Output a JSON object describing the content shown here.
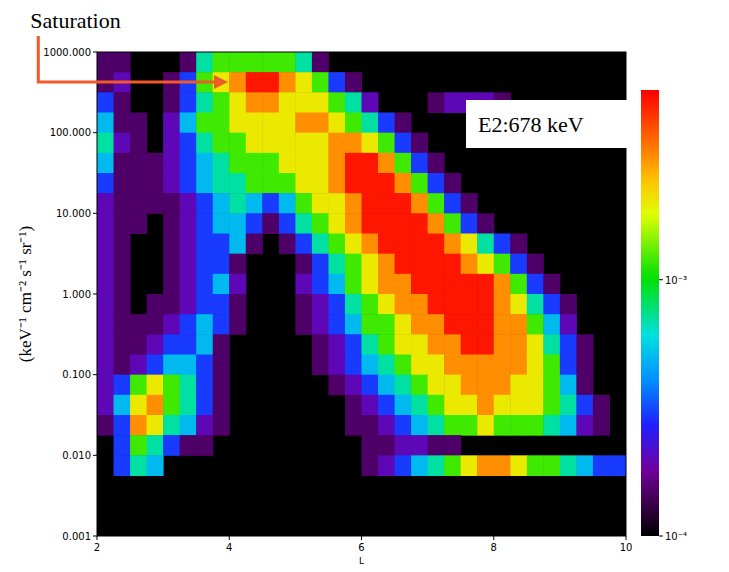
{
  "chart_data": {
    "type": "heatmap",
    "annotations": [
      "Saturation",
      "E2:678 keV"
    ],
    "xlabel": "L",
    "ylabel": "(keV⁻¹ cm⁻² s⁻¹ sr⁻¹)",
    "log": "y",
    "xlim": [
      2,
      10
    ],
    "xticks": [
      2,
      4,
      6,
      8,
      10
    ],
    "ylim": [
      0.001,
      1000
    ],
    "yticks": [
      {
        "value": 0.001,
        "label": "0.001"
      },
      {
        "value": 0.01,
        "label": "0.010"
      },
      {
        "value": 0.1,
        "label": "0.100"
      },
      {
        "value": 1,
        "label": "1.000"
      },
      {
        "value": 10,
        "label": "10.000"
      },
      {
        "value": 100,
        "label": "100.000"
      },
      {
        "value": 1000,
        "label": "1000.000"
      }
    ],
    "x_bins": [
      2,
      2.25,
      2.5,
      2.75,
      3,
      3.25,
      3.5,
      3.75,
      4,
      4.25,
      4.5,
      4.75,
      5,
      5.25,
      5.5,
      5.75,
      6,
      6.25,
      6.5,
      6.75,
      7,
      7.25,
      7.5,
      7.75,
      8,
      8.25,
      8.5,
      8.75,
      9,
      9.25,
      9.5,
      9.75,
      10
    ],
    "y_bins": [
      1000,
      562.3,
      316.2,
      177.8,
      100,
      56.23,
      31.62,
      17.78,
      10,
      5.623,
      3.162,
      1.778,
      1,
      0.5623,
      0.3162,
      0.1778,
      0.1,
      0.05623,
      0.03162,
      0.01778,
      0.01,
      0.005623,
      0.003162,
      0.001778,
      0.001
    ],
    "cells": [
      [
        0.00015,
        0.00015,
        null,
        null,
        null,
        0.00015,
        0.0007,
        0.0012,
        0.0012,
        0.0012,
        0.0012,
        0.0012,
        0.0007,
        0.00015,
        null,
        null,
        null,
        null,
        null,
        null,
        null,
        null,
        null,
        null,
        null,
        null,
        null,
        null,
        null,
        null,
        null,
        null
      ],
      [
        0.00015,
        0.0002,
        null,
        null,
        0.00015,
        0.0003,
        0.0012,
        0.002,
        0.003,
        0.005,
        0.005,
        0.003,
        0.002,
        0.0012,
        0.0003,
        0.00015,
        null,
        null,
        null,
        null,
        null,
        null,
        null,
        null,
        null,
        null,
        null,
        null,
        null,
        null,
        null,
        null
      ],
      [
        0.0003,
        0.00015,
        null,
        null,
        0.00015,
        0.0003,
        0.0007,
        0.0012,
        0.002,
        0.003,
        0.003,
        0.002,
        0.002,
        0.002,
        0.0012,
        0.0007,
        0.0002,
        null,
        null,
        null,
        0.00015,
        0.0002,
        0.0002,
        0.0002,
        0.00015,
        null,
        null,
        null,
        null,
        null,
        null,
        null
      ],
      [
        0.0005,
        0.00015,
        0.00015,
        null,
        0.0002,
        0.0005,
        0.0012,
        0.0012,
        0.002,
        0.002,
        0.002,
        0.002,
        0.003,
        0.003,
        0.002,
        0.0012,
        0.0007,
        0.0003,
        0.00015,
        null,
        null,
        null,
        null,
        null,
        null,
        null,
        null,
        null,
        null,
        null,
        null,
        null
      ],
      [
        0.0007,
        0.0002,
        0.00015,
        null,
        0.0002,
        0.0003,
        0.0007,
        0.0012,
        0.0012,
        0.002,
        0.002,
        0.002,
        0.002,
        0.002,
        0.003,
        0.003,
        0.002,
        0.0012,
        0.0003,
        0.00015,
        null,
        null,
        null,
        null,
        null,
        null,
        null,
        null,
        null,
        null,
        null,
        null
      ],
      [
        0.0005,
        0.00015,
        0.00015,
        0.00015,
        0.0002,
        0.0003,
        0.0005,
        0.0007,
        0.0012,
        0.0012,
        0.0012,
        0.002,
        0.002,
        0.002,
        0.003,
        0.005,
        0.005,
        0.003,
        0.0012,
        0.0003,
        0.00015,
        null,
        null,
        null,
        null,
        null,
        null,
        null,
        null,
        null,
        null,
        null
      ],
      [
        0.0003,
        0.00015,
        0.00015,
        0.00015,
        0.0002,
        0.0003,
        0.0005,
        0.0007,
        0.0007,
        0.0012,
        0.0012,
        0.0012,
        0.002,
        0.002,
        0.003,
        0.005,
        0.005,
        0.005,
        0.003,
        0.0012,
        0.0003,
        0.00015,
        null,
        null,
        null,
        null,
        null,
        null,
        null,
        null,
        null,
        null
      ],
      [
        0.0002,
        0.00015,
        0.00015,
        0.00015,
        0.00015,
        0.0002,
        0.0003,
        0.0005,
        0.0007,
        0.0005,
        0.0003,
        0.0005,
        0.0012,
        0.002,
        0.002,
        0.003,
        0.005,
        0.005,
        0.005,
        0.003,
        0.0012,
        0.0003,
        0.00015,
        null,
        null,
        null,
        null,
        null,
        null,
        null,
        null,
        null
      ],
      [
        0.0002,
        0.00015,
        0.00015,
        null,
        0.00015,
        0.0002,
        0.0003,
        0.0005,
        0.0005,
        0.0003,
        0.00015,
        0.0003,
        0.0007,
        0.0012,
        0.002,
        0.003,
        0.005,
        0.005,
        0.005,
        0.005,
        0.003,
        0.0012,
        0.0003,
        0.00015,
        null,
        null,
        null,
        null,
        null,
        null,
        null,
        null
      ],
      [
        0.0002,
        0.00015,
        null,
        null,
        0.00015,
        0.0002,
        0.0003,
        0.0003,
        0.0005,
        0.00015,
        null,
        0.00015,
        0.0003,
        0.0007,
        0.0012,
        0.002,
        0.003,
        0.005,
        0.005,
        0.005,
        0.005,
        0.003,
        0.002,
        0.0007,
        0.0003,
        0.00015,
        null,
        null,
        null,
        null,
        null,
        null
      ],
      [
        0.0002,
        0.00015,
        null,
        null,
        0.00015,
        0.0002,
        0.0003,
        0.0003,
        0.00015,
        null,
        null,
        null,
        0.00015,
        0.0003,
        0.0007,
        0.0012,
        0.002,
        0.003,
        0.005,
        0.005,
        0.005,
        0.005,
        0.003,
        0.002,
        0.0012,
        0.0003,
        0.00015,
        null,
        null,
        null,
        null,
        null
      ],
      [
        0.0002,
        0.00015,
        null,
        null,
        0.00015,
        0.0002,
        0.0003,
        0.0005,
        0.0002,
        null,
        null,
        null,
        0.0002,
        0.0003,
        0.0005,
        0.0012,
        0.002,
        0.003,
        0.003,
        0.005,
        0.005,
        0.005,
        0.005,
        0.005,
        0.003,
        0.0012,
        0.0003,
        0.00015,
        null,
        null,
        null,
        null
      ],
      [
        0.0002,
        0.00015,
        null,
        0.00015,
        0.00015,
        0.0002,
        0.0003,
        0.0003,
        0.00015,
        null,
        null,
        null,
        0.00015,
        0.0002,
        0.0003,
        0.0007,
        0.0012,
        0.002,
        0.003,
        0.003,
        0.005,
        0.005,
        0.005,
        0.005,
        0.003,
        0.002,
        0.0007,
        0.0003,
        0.00015,
        null,
        null,
        null
      ],
      [
        0.0002,
        0.00015,
        0.00015,
        0.00015,
        0.0002,
        0.0003,
        0.0005,
        0.0003,
        0.00015,
        null,
        null,
        null,
        0.00015,
        0.0002,
        0.0003,
        0.0005,
        0.0012,
        0.0012,
        0.002,
        0.003,
        0.003,
        0.005,
        0.005,
        0.005,
        0.003,
        0.003,
        0.0012,
        0.0005,
        0.0002,
        null,
        null,
        null
      ],
      [
        0.0002,
        0.00015,
        0.00015,
        0.0002,
        0.0003,
        0.0003,
        0.0005,
        0.00015,
        null,
        null,
        null,
        null,
        null,
        0.00015,
        0.0002,
        0.0003,
        0.0007,
        0.0012,
        0.002,
        0.002,
        0.003,
        0.003,
        0.005,
        0.005,
        0.003,
        0.003,
        0.002,
        0.0007,
        0.0003,
        0.00015,
        null,
        null
      ],
      [
        0.0002,
        0.00015,
        0.0002,
        0.0003,
        0.0005,
        0.0005,
        0.0003,
        0.00015,
        null,
        null,
        null,
        null,
        null,
        0.00015,
        0.0002,
        0.0003,
        0.0005,
        0.0007,
        0.0012,
        0.002,
        0.002,
        0.003,
        0.003,
        0.003,
        0.003,
        0.003,
        0.002,
        0.0012,
        0.0003,
        0.00015,
        null,
        null
      ],
      [
        0.0002,
        0.0003,
        0.0012,
        0.002,
        0.0012,
        0.0007,
        0.0003,
        0.00015,
        null,
        null,
        null,
        null,
        null,
        null,
        0.00015,
        0.0002,
        0.0003,
        0.0005,
        0.0007,
        0.0012,
        0.002,
        0.002,
        0.003,
        0.003,
        0.003,
        0.002,
        0.002,
        0.0012,
        0.0005,
        0.00015,
        null,
        null
      ],
      [
        0.0002,
        0.0005,
        0.002,
        0.003,
        0.0012,
        0.0007,
        0.0003,
        0.00015,
        null,
        null,
        null,
        null,
        null,
        null,
        null,
        0.00015,
        0.0002,
        0.0003,
        0.0005,
        0.0007,
        0.0012,
        0.002,
        0.002,
        0.003,
        0.002,
        0.002,
        0.002,
        0.0012,
        0.0007,
        0.0003,
        0.00015,
        null
      ],
      [
        0.00015,
        0.0003,
        0.003,
        0.002,
        0.0007,
        0.0005,
        0.0002,
        0.00015,
        null,
        null,
        null,
        null,
        null,
        null,
        null,
        0.00015,
        0.00015,
        0.0002,
        0.0003,
        0.0005,
        0.0007,
        0.0012,
        0.0012,
        0.002,
        0.0012,
        0.0012,
        0.0012,
        0.0007,
        0.0005,
        0.0002,
        0.00015,
        null
      ],
      [
        null,
        0.0003,
        0.0012,
        0.0007,
        0.0003,
        0.00015,
        0.00015,
        null,
        null,
        null,
        null,
        null,
        null,
        null,
        null,
        null,
        0.00015,
        0.00015,
        0.0002,
        0.0002,
        0.00015,
        0.00015,
        null,
        null,
        null,
        null,
        null,
        null,
        null,
        null,
        null,
        null
      ],
      [
        null,
        0.0003,
        0.0007,
        0.0005,
        null,
        null,
        null,
        null,
        null,
        null,
        null,
        null,
        null,
        null,
        null,
        null,
        0.00015,
        0.0002,
        0.0003,
        0.0005,
        0.0007,
        0.0012,
        0.002,
        0.003,
        0.003,
        0.002,
        0.0012,
        0.0012,
        0.0007,
        0.0005,
        0.0003,
        0.0003
      ],
      [
        null,
        null,
        null,
        null,
        null,
        null,
        null,
        null,
        null,
        null,
        null,
        null,
        null,
        null,
        null,
        null,
        null,
        null,
        null,
        null,
        null,
        null,
        null,
        null,
        null,
        null,
        null,
        null,
        null,
        null,
        null,
        null
      ],
      [
        null,
        null,
        null,
        null,
        null,
        null,
        null,
        null,
        null,
        null,
        null,
        null,
        null,
        null,
        null,
        null,
        null,
        null,
        null,
        null,
        null,
        null,
        null,
        null,
        null,
        null,
        null,
        null,
        null,
        null,
        null,
        null
      ],
      [
        null,
        null,
        null,
        null,
        null,
        null,
        null,
        null,
        null,
        null,
        null,
        null,
        null,
        null,
        null,
        null,
        null,
        null,
        null,
        null,
        null,
        null,
        null,
        null,
        null,
        null,
        null,
        null,
        null,
        null,
        null,
        null
      ]
    ],
    "color_range": [
      0.0001,
      0.0055
    ],
    "color_ticks": [
      {
        "value": 0.0001,
        "label": "10⁻⁴"
      },
      {
        "value": 0.001,
        "label": "10⁻³"
      }
    ]
  }
}
